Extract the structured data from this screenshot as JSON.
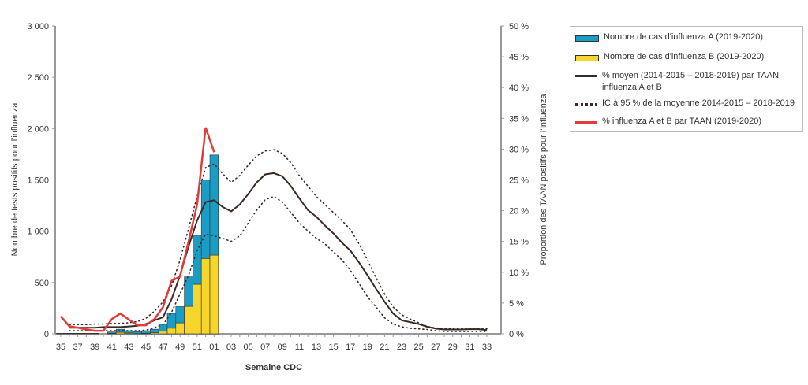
{
  "chart_data": {
    "type": "bar+line",
    "xlabel": "Semaine CDC",
    "ylabel_left": "Nombre de tests positifs pour l'influenza",
    "ylabel_right": "Proportion des TAAN positifs pour l'influenza",
    "ylim_left": [
      0,
      3000
    ],
    "ylim_right": [
      0,
      50
    ],
    "left_ticks": [
      "0",
      "500",
      "1 000",
      "1 500",
      "2 000",
      "2 500",
      "3 000"
    ],
    "right_ticks": [
      "0 %",
      "5 %",
      "10 %",
      "15 %",
      "20 %",
      "25 %",
      "30 %",
      "35 %",
      "40 %",
      "45 %",
      "50 %"
    ],
    "weeks": [
      "35",
      "36",
      "37",
      "38",
      "39",
      "40",
      "41",
      "42",
      "43",
      "44",
      "45",
      "46",
      "47",
      "48",
      "49",
      "50",
      "51",
      "52",
      "01",
      "02",
      "03",
      "04",
      "05",
      "06",
      "07",
      "08",
      "09",
      "10",
      "11",
      "12",
      "13",
      "14",
      "15",
      "16",
      "17",
      "18",
      "19",
      "20",
      "21",
      "22",
      "23",
      "24",
      "25",
      "26",
      "27",
      "28",
      "29",
      "30",
      "31",
      "32",
      "33"
    ],
    "legend_placement": "right",
    "series": [
      {
        "name": "Nombre de cas d'influenza A (2019-2020)",
        "kind": "bar-stack",
        "color": "#1a9cc4",
        "values": [
          3,
          3,
          3,
          3,
          3,
          0,
          13,
          30,
          22,
          18,
          25,
          35,
          70,
          145,
          158,
          287,
          472,
          766,
          976
        ]
      },
      {
        "name": "Nombre de cas d'influenza B (2019-2020)",
        "kind": "bar-stack",
        "color": "#f8d52a",
        "values": [
          2,
          2,
          2,
          2,
          2,
          0,
          5,
          15,
          8,
          2,
          5,
          10,
          25,
          55,
          107,
          268,
          483,
          734,
          767
        ]
      },
      {
        "name": "% moyen (2014-2015 – 2018-2019) par TAAN, influenza A et B",
        "kind": "line",
        "color": "#3a2a25",
        "values": [
          null,
          1.0,
          1.0,
          1.0,
          1.0,
          1.1,
          1.1,
          1.1,
          1.2,
          1.3,
          1.6,
          2.2,
          2.7,
          5.6,
          9.5,
          14.2,
          18.4,
          21.4,
          21.7,
          20.6,
          19.9,
          21,
          22.7,
          24.6,
          25.9,
          26.1,
          25.6,
          24,
          22,
          20.1,
          19,
          17.6,
          16.3,
          14.8,
          13.5,
          11.6,
          9.5,
          7.3,
          5.2,
          3.3,
          2.2,
          1.9,
          1.6,
          1.15,
          0.85,
          0.7,
          0.7,
          0.7,
          0.75,
          0.75,
          0.6
        ]
      },
      {
        "name": "IC à 95 % de la moyenne 2014-2015 – 2018-2019",
        "kind": "dotted",
        "color": "#3a2a25",
        "upper": [
          null,
          1.5,
          1.5,
          1.5,
          1.6,
          1.6,
          1.7,
          1.7,
          1.8,
          2.0,
          2.5,
          3.7,
          5.2,
          7.8,
          12,
          17.1,
          22.3,
          27,
          27.6,
          26,
          24.6,
          25.7,
          27.4,
          28.9,
          29.7,
          29.9,
          29.3,
          27.8,
          25.7,
          24,
          22.3,
          21,
          19.7,
          18.4,
          16.9,
          14.6,
          12,
          9.1,
          6.5,
          4.35,
          3.1,
          2.4,
          1.8,
          1.2,
          0.95,
          0.9,
          0.9,
          0.9,
          0.9,
          0.9,
          0.8
        ],
        "lower": [
          null,
          0.5,
          0.5,
          0.5,
          0.5,
          0.5,
          0.5,
          0.5,
          0.5,
          0.5,
          0.6,
          1.0,
          1.5,
          3.5,
          6.5,
          9.5,
          13.5,
          16.2,
          15.9,
          15.5,
          15,
          15.9,
          18,
          20.1,
          21.8,
          22.3,
          21.4,
          19.7,
          18,
          16.7,
          15.5,
          14.6,
          13.3,
          12,
          10.3,
          8.2,
          6,
          4.35,
          2.6,
          1.6,
          1.15,
          0.9,
          0.8,
          0.7,
          0.5,
          0.4,
          0.4,
          0.4,
          0.4,
          0.4,
          0.4
        ]
      },
      {
        "name": "% influenza A et B par TAAN (2019-2020)",
        "kind": "line",
        "color": "#e23b3b",
        "values": [
          2.85,
          1.24,
          1.0,
          0.7,
          0.5,
          0.5,
          2.4,
          3.3,
          2.3,
          1.4,
          1.4,
          2.4,
          4.35,
          8.6,
          9.3,
          15,
          21,
          33.5,
          29.5
        ]
      }
    ]
  }
}
